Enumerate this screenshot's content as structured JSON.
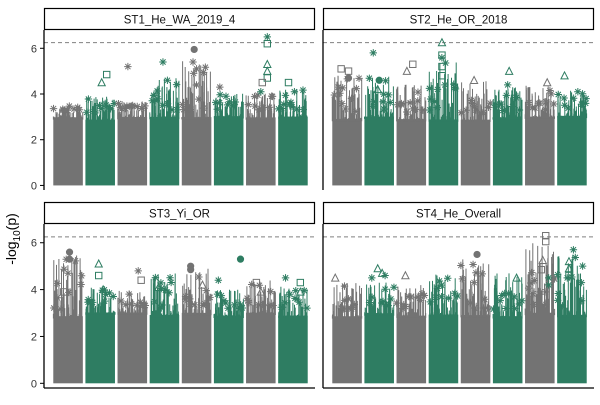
{
  "chart_data": {
    "type": "scatter",
    "subtype": "manhattan",
    "ylabel_prefix": "-log",
    "ylabel_sub": "10",
    "ylabel_suffix": "(p)",
    "ylim": [
      -0.2,
      6.8
    ],
    "yticks": [
      0,
      2,
      4,
      6
    ],
    "threshold": 6.25,
    "colors": {
      "gray": "#737373",
      "green": "#2e7d62",
      "threshold": "#808080"
    },
    "chromosomes": 8,
    "panels": [
      {
        "name": "ST1_He_WA_2019_4",
        "chrom_peaks": [
          3.7,
          4.1,
          3.9,
          4.9,
          5.8,
          4.3,
          4.3,
          4.5
        ],
        "highlights": [
          {
            "chr": 2,
            "x": 0.72,
            "y": 4.85,
            "m": "square",
            "c": "green"
          },
          {
            "chr": 2,
            "x": 0.55,
            "y": 4.5,
            "m": "triangle",
            "c": "green"
          },
          {
            "chr": 3,
            "x": 0.35,
            "y": 5.2,
            "m": "star",
            "c": "gray"
          },
          {
            "chr": 4,
            "x": 0.45,
            "y": 5.4,
            "m": "star",
            "c": "green"
          },
          {
            "chr": 4,
            "x": 0.6,
            "y": 4.6,
            "m": "star",
            "c": "green"
          },
          {
            "chr": 5,
            "x": 0.42,
            "y": 5.95,
            "m": "circle",
            "c": "gray"
          },
          {
            "chr": 5,
            "x": 0.38,
            "y": 5.4,
            "m": "star",
            "c": "gray"
          },
          {
            "chr": 5,
            "x": 0.5,
            "y": 5.1,
            "m": "star",
            "c": "gray"
          },
          {
            "chr": 5,
            "x": 0.4,
            "y": 4.9,
            "m": "star",
            "c": "gray"
          },
          {
            "chr": 6,
            "x": 0.2,
            "y": 4.3,
            "m": "star",
            "c": "gray"
          },
          {
            "chr": 7,
            "x": 0.72,
            "y": 6.5,
            "m": "star",
            "c": "green"
          },
          {
            "chr": 7,
            "x": 0.72,
            "y": 6.2,
            "m": "square",
            "c": "green"
          },
          {
            "chr": 7,
            "x": 0.72,
            "y": 5.3,
            "m": "triangle",
            "c": "green"
          },
          {
            "chr": 7,
            "x": 0.72,
            "y": 5.0,
            "m": "triangle",
            "c": "green"
          },
          {
            "chr": 7,
            "x": 0.72,
            "y": 4.7,
            "m": "square",
            "c": "green"
          },
          {
            "chr": 7,
            "x": 0.55,
            "y": 4.5,
            "m": "square",
            "c": "gray"
          },
          {
            "chr": 7,
            "x": 0.5,
            "y": 4.1,
            "m": "star",
            "c": "green"
          },
          {
            "chr": 8,
            "x": 0.35,
            "y": 4.5,
            "m": "square",
            "c": "green"
          },
          {
            "chr": 8,
            "x": 0.55,
            "y": 4.1,
            "m": "star",
            "c": "green"
          }
        ]
      },
      {
        "name": "ST2_He_OR_2018",
        "chrom_peaks": [
          5.0,
          5.0,
          4.7,
          5.9,
          4.8,
          4.5,
          4.6,
          4.4
        ],
        "highlights": [
          {
            "chr": 1,
            "x": 0.3,
            "y": 5.1,
            "m": "square",
            "c": "gray"
          },
          {
            "chr": 1,
            "x": 0.55,
            "y": 5.0,
            "m": "square",
            "c": "gray"
          },
          {
            "chr": 1,
            "x": 0.55,
            "y": 4.7,
            "m": "circle",
            "c": "gray"
          },
          {
            "chr": 1,
            "x": 0.2,
            "y": 4.3,
            "m": "star",
            "c": "gray"
          },
          {
            "chr": 2,
            "x": 0.3,
            "y": 5.8,
            "m": "star",
            "c": "green"
          },
          {
            "chr": 2,
            "x": 0.5,
            "y": 4.6,
            "m": "circle",
            "c": "green"
          },
          {
            "chr": 2,
            "x": 0.45,
            "y": 4.2,
            "m": "triangle",
            "c": "green"
          },
          {
            "chr": 3,
            "x": 0.55,
            "y": 5.3,
            "m": "square",
            "c": "gray"
          },
          {
            "chr": 3,
            "x": 0.35,
            "y": 5.0,
            "m": "triangle",
            "c": "gray"
          },
          {
            "chr": 4,
            "x": 0.45,
            "y": 6.25,
            "m": "triangle",
            "c": "green"
          },
          {
            "chr": 4,
            "x": 0.45,
            "y": 5.7,
            "m": "square",
            "c": "green"
          },
          {
            "chr": 4,
            "x": 0.45,
            "y": 5.2,
            "m": "square",
            "c": "green"
          },
          {
            "chr": 4,
            "x": 0.45,
            "y": 4.8,
            "m": "square",
            "c": "green"
          },
          {
            "chr": 4,
            "x": 0.55,
            "y": 4.4,
            "m": "star",
            "c": "green"
          },
          {
            "chr": 4,
            "x": 0.3,
            "y": 4.2,
            "m": "star",
            "c": "green"
          },
          {
            "chr": 5,
            "x": 0.45,
            "y": 4.6,
            "m": "triangle",
            "c": "gray"
          },
          {
            "chr": 6,
            "x": 0.55,
            "y": 5.0,
            "m": "triangle",
            "c": "green"
          },
          {
            "chr": 6,
            "x": 0.5,
            "y": 4.4,
            "m": "star",
            "c": "green"
          },
          {
            "chr": 7,
            "x": 0.75,
            "y": 4.5,
            "m": "triangle",
            "c": "gray"
          },
          {
            "chr": 8,
            "x": 0.25,
            "y": 4.8,
            "m": "triangle",
            "c": "green"
          },
          {
            "chr": 8,
            "x": 0.7,
            "y": 4.1,
            "m": "star",
            "c": "green"
          }
        ]
      },
      {
        "name": "ST3_Yi_OR",
        "chrom_peaks": [
          5.7,
          4.3,
          4.2,
          4.9,
          5.1,
          4.2,
          4.6,
          4.4
        ],
        "highlights": [
          {
            "chr": 1,
            "x": 0.55,
            "y": 5.6,
            "m": "circle",
            "c": "gray"
          },
          {
            "chr": 1,
            "x": 0.55,
            "y": 5.3,
            "m": "circle",
            "c": "gray"
          },
          {
            "chr": 1,
            "x": 0.5,
            "y": 4.7,
            "m": "star",
            "c": "gray"
          },
          {
            "chr": 1,
            "x": 0.35,
            "y": 3.9,
            "m": "square",
            "c": "gray"
          },
          {
            "chr": 2,
            "x": 0.45,
            "y": 5.1,
            "m": "triangle",
            "c": "green"
          },
          {
            "chr": 2,
            "x": 0.45,
            "y": 4.6,
            "m": "square",
            "c": "green"
          },
          {
            "chr": 2,
            "x": 0.6,
            "y": 4.0,
            "m": "triangle",
            "c": "green"
          },
          {
            "chr": 3,
            "x": 0.7,
            "y": 4.8,
            "m": "star",
            "c": "gray"
          },
          {
            "chr": 3,
            "x": 0.8,
            "y": 4.4,
            "m": "square",
            "c": "gray"
          },
          {
            "chr": 4,
            "x": 0.3,
            "y": 4.1,
            "m": "triangle",
            "c": "green"
          },
          {
            "chr": 5,
            "x": 0.3,
            "y": 5.0,
            "m": "circle",
            "c": "gray"
          },
          {
            "chr": 5,
            "x": 0.3,
            "y": 4.85,
            "m": "circle",
            "c": "gray"
          },
          {
            "chr": 5,
            "x": 0.7,
            "y": 4.2,
            "m": "triangle",
            "c": "gray"
          },
          {
            "chr": 6,
            "x": 0.15,
            "y": 4.4,
            "m": "star",
            "c": "green"
          },
          {
            "chr": 6,
            "x": 0.9,
            "y": 5.3,
            "m": "circle",
            "c": "green"
          },
          {
            "chr": 7,
            "x": 0.35,
            "y": 4.3,
            "m": "square",
            "c": "gray"
          },
          {
            "chr": 7,
            "x": 0.5,
            "y": 3.9,
            "m": "triangle",
            "c": "gray"
          },
          {
            "chr": 8,
            "x": 0.25,
            "y": 4.5,
            "m": "star",
            "c": "green"
          },
          {
            "chr": 8,
            "x": 0.75,
            "y": 4.3,
            "m": "square",
            "c": "green"
          },
          {
            "chr": 8,
            "x": 0.75,
            "y": 3.9,
            "m": "triangle",
            "c": "green"
          }
        ]
      },
      {
        "name": "ST4_He_Overall",
        "chrom_peaks": [
          4.5,
          4.5,
          4.4,
          4.9,
          5.5,
          4.9,
          6.3,
          5.7
        ],
        "highlights": [
          {
            "chr": 1,
            "x": 0.1,
            "y": 4.5,
            "m": "triangle",
            "c": "gray"
          },
          {
            "chr": 2,
            "x": 0.25,
            "y": 4.5,
            "m": "star",
            "c": "green"
          },
          {
            "chr": 2,
            "x": 0.45,
            "y": 4.9,
            "m": "triangle",
            "c": "green"
          },
          {
            "chr": 2,
            "x": 0.6,
            "y": 4.7,
            "m": "triangle",
            "c": "green"
          },
          {
            "chr": 2,
            "x": 0.7,
            "y": 4.6,
            "m": "star",
            "c": "green"
          },
          {
            "chr": 3,
            "x": 0.3,
            "y": 4.6,
            "m": "triangle",
            "c": "gray"
          },
          {
            "chr": 5,
            "x": 0.55,
            "y": 5.5,
            "m": "circle",
            "c": "gray"
          },
          {
            "chr": 5,
            "x": 0.45,
            "y": 4.3,
            "m": "star",
            "c": "gray"
          },
          {
            "chr": 6,
            "x": 0.8,
            "y": 4.5,
            "m": "triangle",
            "c": "green"
          },
          {
            "chr": 7,
            "x": 0.7,
            "y": 6.3,
            "m": "square",
            "c": "gray"
          },
          {
            "chr": 7,
            "x": 0.7,
            "y": 6.05,
            "m": "square",
            "c": "gray"
          },
          {
            "chr": 7,
            "x": 0.6,
            "y": 5.25,
            "m": "triangle",
            "c": "gray"
          },
          {
            "chr": 7,
            "x": 0.55,
            "y": 4.85,
            "m": "square",
            "c": "gray"
          },
          {
            "chr": 7,
            "x": 0.8,
            "y": 4.5,
            "m": "star",
            "c": "green"
          },
          {
            "chr": 7,
            "x": 0.8,
            "y": 4.2,
            "m": "star",
            "c": "green"
          },
          {
            "chr": 8,
            "x": 0.55,
            "y": 5.7,
            "m": "star",
            "c": "green"
          },
          {
            "chr": 8,
            "x": 0.4,
            "y": 5.2,
            "m": "triangle",
            "c": "green"
          },
          {
            "chr": 8,
            "x": 0.4,
            "y": 4.9,
            "m": "triangle",
            "c": "green"
          },
          {
            "chr": 8,
            "x": 0.4,
            "y": 4.6,
            "m": "square",
            "c": "green"
          }
        ]
      }
    ]
  }
}
